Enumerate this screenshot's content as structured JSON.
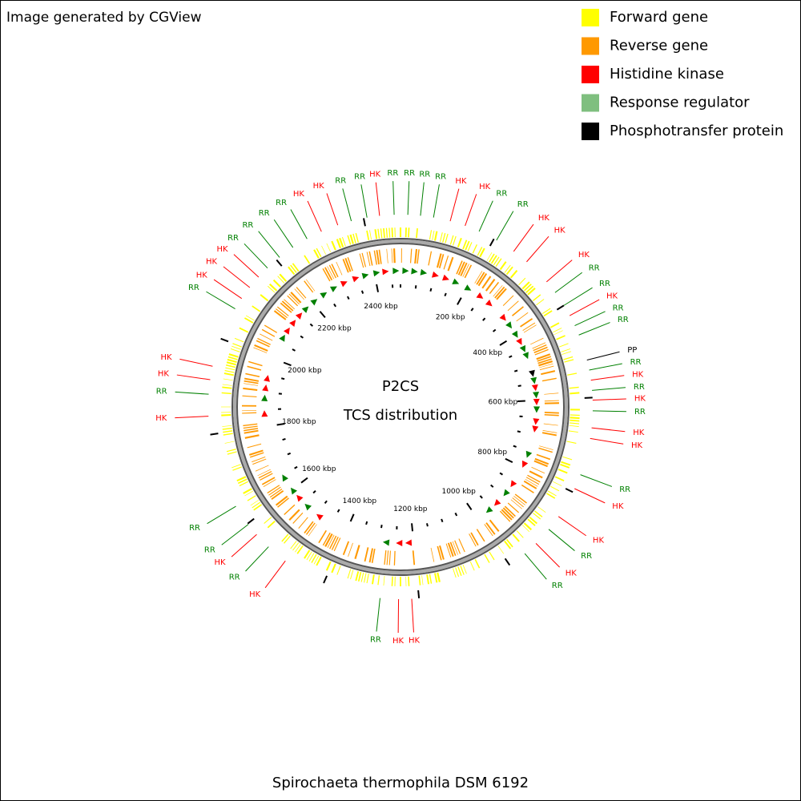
{
  "header": {
    "title": "Image generated by CGView"
  },
  "legend": [
    {
      "text": "Forward gene",
      "color": "#ffff00"
    },
    {
      "text": "Reverse gene",
      "color": "#ff9900"
    },
    {
      "text": "Histidine kinase",
      "color": "#ff0000"
    },
    {
      "text": "Response regulator",
      "color": "#7fbf7f"
    },
    {
      "text": "Phosphotransfer protein",
      "color": "#000000"
    }
  ],
  "map": {
    "center_title": "P2CS",
    "center_subtitle": "TCS distribution",
    "caption": "Spirochaeta thermophila DSM 6192",
    "scale_kbp": [
      0,
      2476
    ],
    "ticks": [
      {
        "value": 200,
        "label": "200 kbp"
      },
      {
        "value": 400,
        "label": "400 kbp"
      },
      {
        "value": 600,
        "label": "600 kbp"
      },
      {
        "value": 800,
        "label": "800 kbp"
      },
      {
        "value": 1000,
        "label": "1000 kbp"
      },
      {
        "value": 1200,
        "label": "1200 kbp"
      },
      {
        "value": 1400,
        "label": "1400 kbp"
      },
      {
        "value": 1600,
        "label": "1600 kbp"
      },
      {
        "value": 1800,
        "label": "1800 kbp"
      },
      {
        "value": 2000,
        "label": "2000 kbp"
      },
      {
        "value": 2200,
        "label": "2200 kbp"
      },
      {
        "value": 2400,
        "label": "2400 kbp"
      }
    ],
    "minor_ticks": [
      0,
      50,
      100,
      150,
      250,
      300,
      350,
      450,
      500,
      550,
      650,
      700,
      750,
      850,
      900,
      950,
      1050,
      1100,
      1150,
      1250,
      1300,
      1350,
      1450,
      1500,
      1550,
      1650,
      1700,
      1750,
      1850,
      1900,
      1950,
      2050,
      2100,
      2150,
      2250,
      2300,
      2350,
      2450
    ],
    "features": [
      {
        "label": "RR",
        "position": 2407,
        "color": "#008000"
      },
      {
        "label": "HK",
        "position": 2433,
        "color": "#ff0000"
      },
      {
        "label": "RR",
        "position": 2463,
        "color": "#008000"
      },
      {
        "label": "RR",
        "position": 15,
        "color": "#008000"
      },
      {
        "label": "RR",
        "position": 41,
        "color": "#008000"
      },
      {
        "label": "RR",
        "position": 68,
        "color": "#008000"
      },
      {
        "label": "HK",
        "position": 103,
        "color": "#ff0000"
      },
      {
        "label": "HK",
        "position": 135,
        "color": "#ff0000"
      },
      {
        "label": "RR",
        "position": 166,
        "color": "#008000"
      },
      {
        "label": "RR",
        "position": 206,
        "color": "#008000"
      },
      {
        "label": "HK",
        "position": 248,
        "color": "#ff0000"
      },
      {
        "label": "HK",
        "position": 282,
        "color": "#ff0000"
      },
      {
        "label": "HK",
        "position": 340,
        "color": "#ff0000"
      },
      {
        "label": "RR",
        "position": 368,
        "color": "#008000"
      },
      {
        "label": "RR",
        "position": 400,
        "color": "#008000"
      },
      {
        "label": "HK",
        "position": 424,
        "color": "#ff0000"
      },
      {
        "label": "RR",
        "position": 447,
        "color": "#008000"
      },
      {
        "label": "RR",
        "position": 468,
        "color": "#008000"
      },
      {
        "label": "PP",
        "position": 522,
        "color": "#000000"
      },
      {
        "label": "RR",
        "position": 543,
        "color": "#008000"
      },
      {
        "label": "HK",
        "position": 564,
        "color": "#ff0000"
      },
      {
        "label": "RR",
        "position": 585,
        "color": "#008000"
      },
      {
        "label": "HK",
        "position": 605,
        "color": "#ff0000"
      },
      {
        "label": "RR",
        "position": 627,
        "color": "#008000"
      },
      {
        "label": "HK",
        "position": 662,
        "color": "#ff0000"
      },
      {
        "label": "HK",
        "position": 684,
        "color": "#ff0000"
      },
      {
        "label": "RR",
        "position": 761,
        "color": "#008000"
      },
      {
        "label": "HK",
        "position": 792,
        "color": "#ff0000"
      },
      {
        "label": "HK",
        "position": 858,
        "color": "#ff0000"
      },
      {
        "label": "RR",
        "position": 891,
        "color": "#008000"
      },
      {
        "label": "HK",
        "position": 930,
        "color": "#ff0000"
      },
      {
        "label": "RR",
        "position": 961,
        "color": "#008000"
      },
      {
        "label": "HK",
        "position": 1215,
        "color": "#ff0000"
      },
      {
        "label": "HK",
        "position": 1242,
        "color": "#ff0000"
      },
      {
        "label": "RR",
        "position": 1280,
        "color": "#008000"
      },
      {
        "label": "HK",
        "position": 1491,
        "color": "#ff0000"
      },
      {
        "label": "RR",
        "position": 1536,
        "color": "#008000"
      },
      {
        "label": "HK",
        "position": 1571,
        "color": "#ff0000"
      },
      {
        "label": "RR",
        "position": 1598,
        "color": "#008000"
      },
      {
        "label": "RR",
        "position": 1643,
        "color": "#008000"
      },
      {
        "label": "HK",
        "position": 1838,
        "color": "#ff0000"
      },
      {
        "label": "RR",
        "position": 1883,
        "color": "#008000"
      },
      {
        "label": "HK",
        "position": 1913,
        "color": "#ff0000"
      },
      {
        "label": "HK",
        "position": 1941,
        "color": "#ff0000"
      },
      {
        "label": "RR",
        "position": 2068,
        "color": "#008000"
      },
      {
        "label": "HK",
        "position": 2093,
        "color": "#ff0000"
      },
      {
        "label": "HK",
        "position": 2121,
        "color": "#ff0000"
      },
      {
        "label": "HK",
        "position": 2149,
        "color": "#ff0000"
      },
      {
        "label": "RR",
        "position": 2175,
        "color": "#008000"
      },
      {
        "label": "RR",
        "position": 2208,
        "color": "#008000"
      },
      {
        "label": "RR",
        "position": 2242,
        "color": "#008000"
      },
      {
        "label": "RR",
        "position": 2276,
        "color": "#008000"
      },
      {
        "label": "HK",
        "position": 2309,
        "color": "#ff0000"
      },
      {
        "label": "HK",
        "position": 2345,
        "color": "#ff0000"
      },
      {
        "label": "RR",
        "position": 2374,
        "color": "#008000"
      }
    ]
  }
}
